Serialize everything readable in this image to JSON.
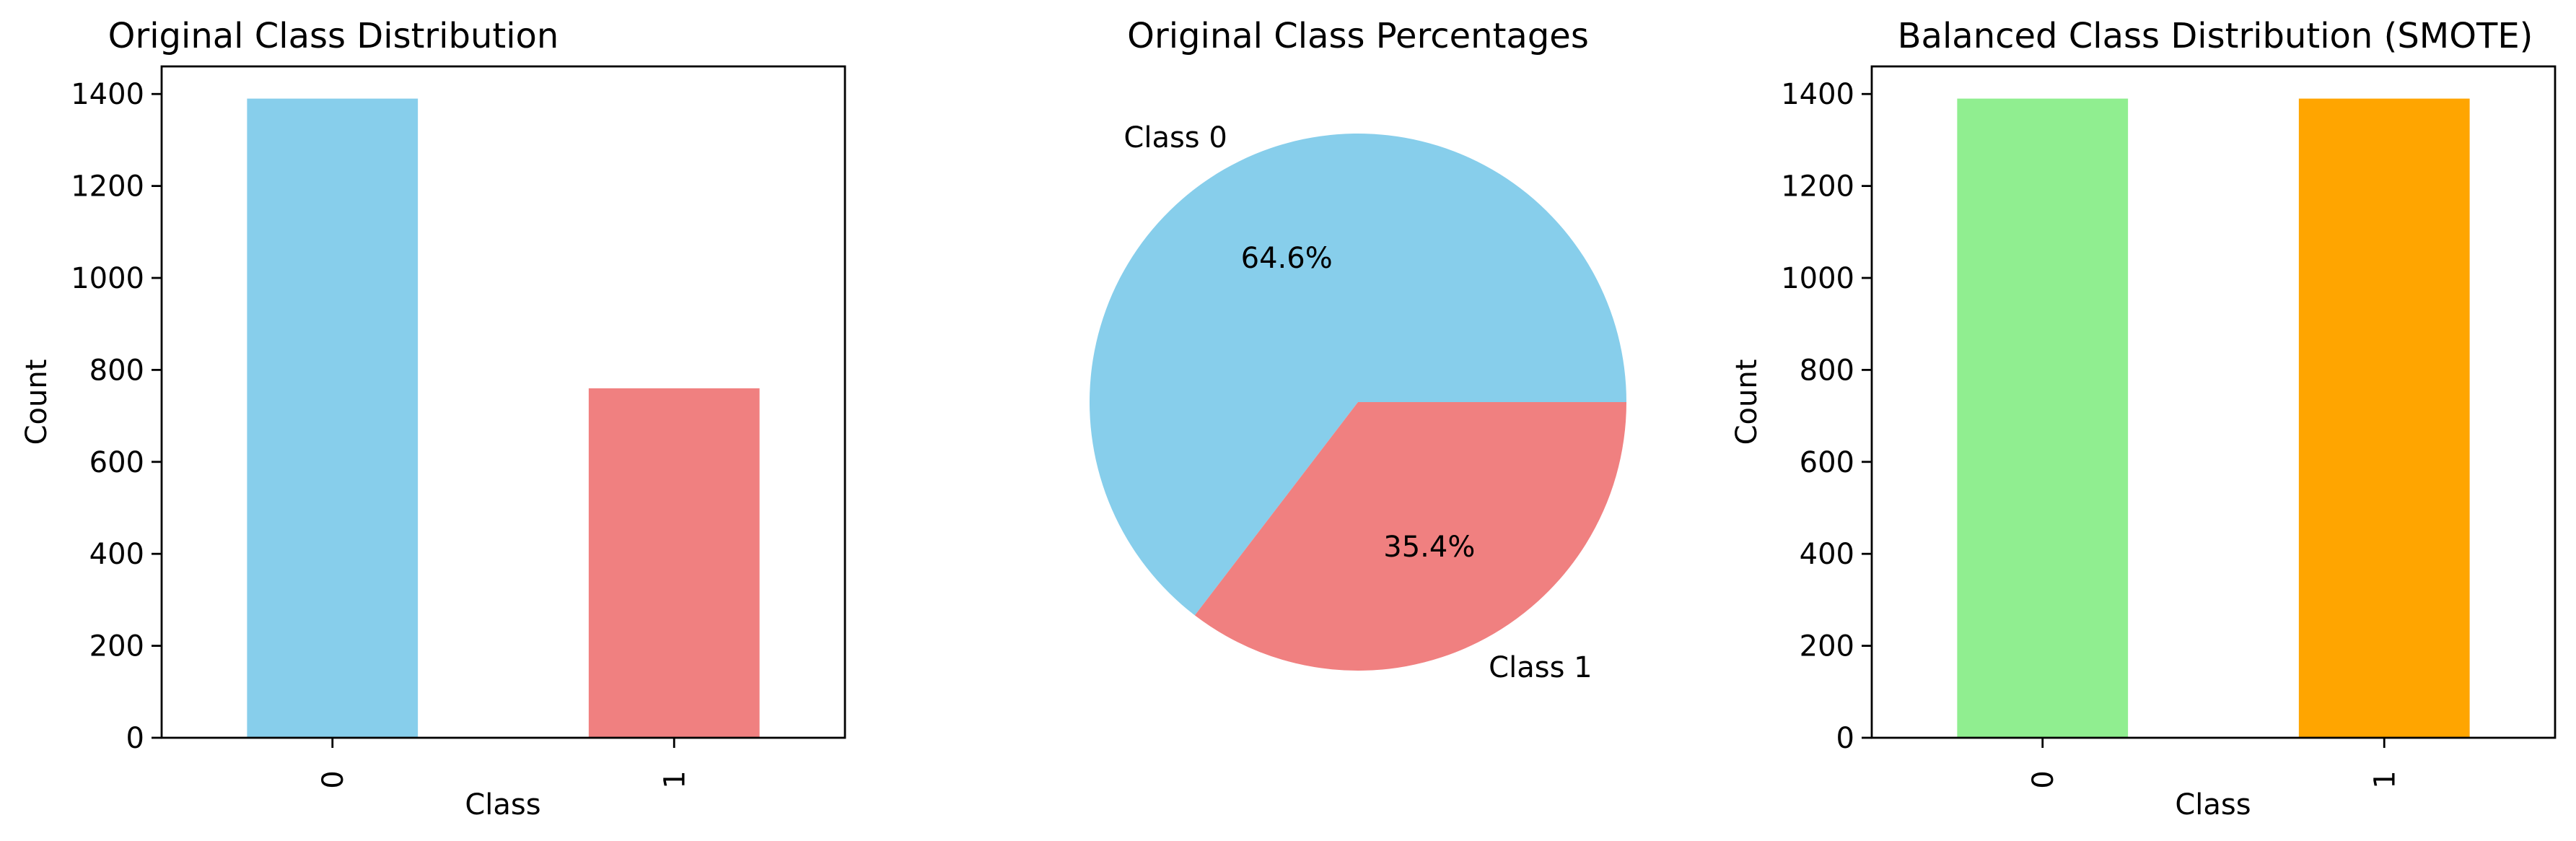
{
  "chart_data": [
    {
      "type": "bar",
      "title": "Original Class Distribution",
      "xlabel": "Class",
      "ylabel": "Count",
      "categories": [
        "0",
        "1"
      ],
      "values": [
        1390,
        760
      ],
      "colors": [
        "#87CEEB",
        "#F08080"
      ],
      "ylim": [
        0,
        1460
      ],
      "yticks": [
        0,
        200,
        400,
        600,
        800,
        1000,
        1200,
        1400
      ],
      "grid": false
    },
    {
      "type": "pie",
      "title": "Original Class Percentages",
      "labels": [
        "Class 0",
        "Class 1"
      ],
      "values": [
        64.6,
        35.4
      ],
      "autopct_labels": [
        "64.6%",
        "35.4%"
      ],
      "colors": [
        "#87CEEB",
        "#F08080"
      ]
    },
    {
      "type": "bar",
      "title": "Balanced Class Distribution (SMOTE)",
      "xlabel": "Class",
      "ylabel": "Count",
      "categories": [
        "0",
        "1"
      ],
      "values": [
        1390,
        1390
      ],
      "colors": [
        "#90EE90",
        "#FFA500"
      ],
      "ylim": [
        0,
        1460
      ],
      "yticks": [
        0,
        200,
        400,
        600,
        800,
        1000,
        1200,
        1400
      ],
      "grid": false
    }
  ]
}
